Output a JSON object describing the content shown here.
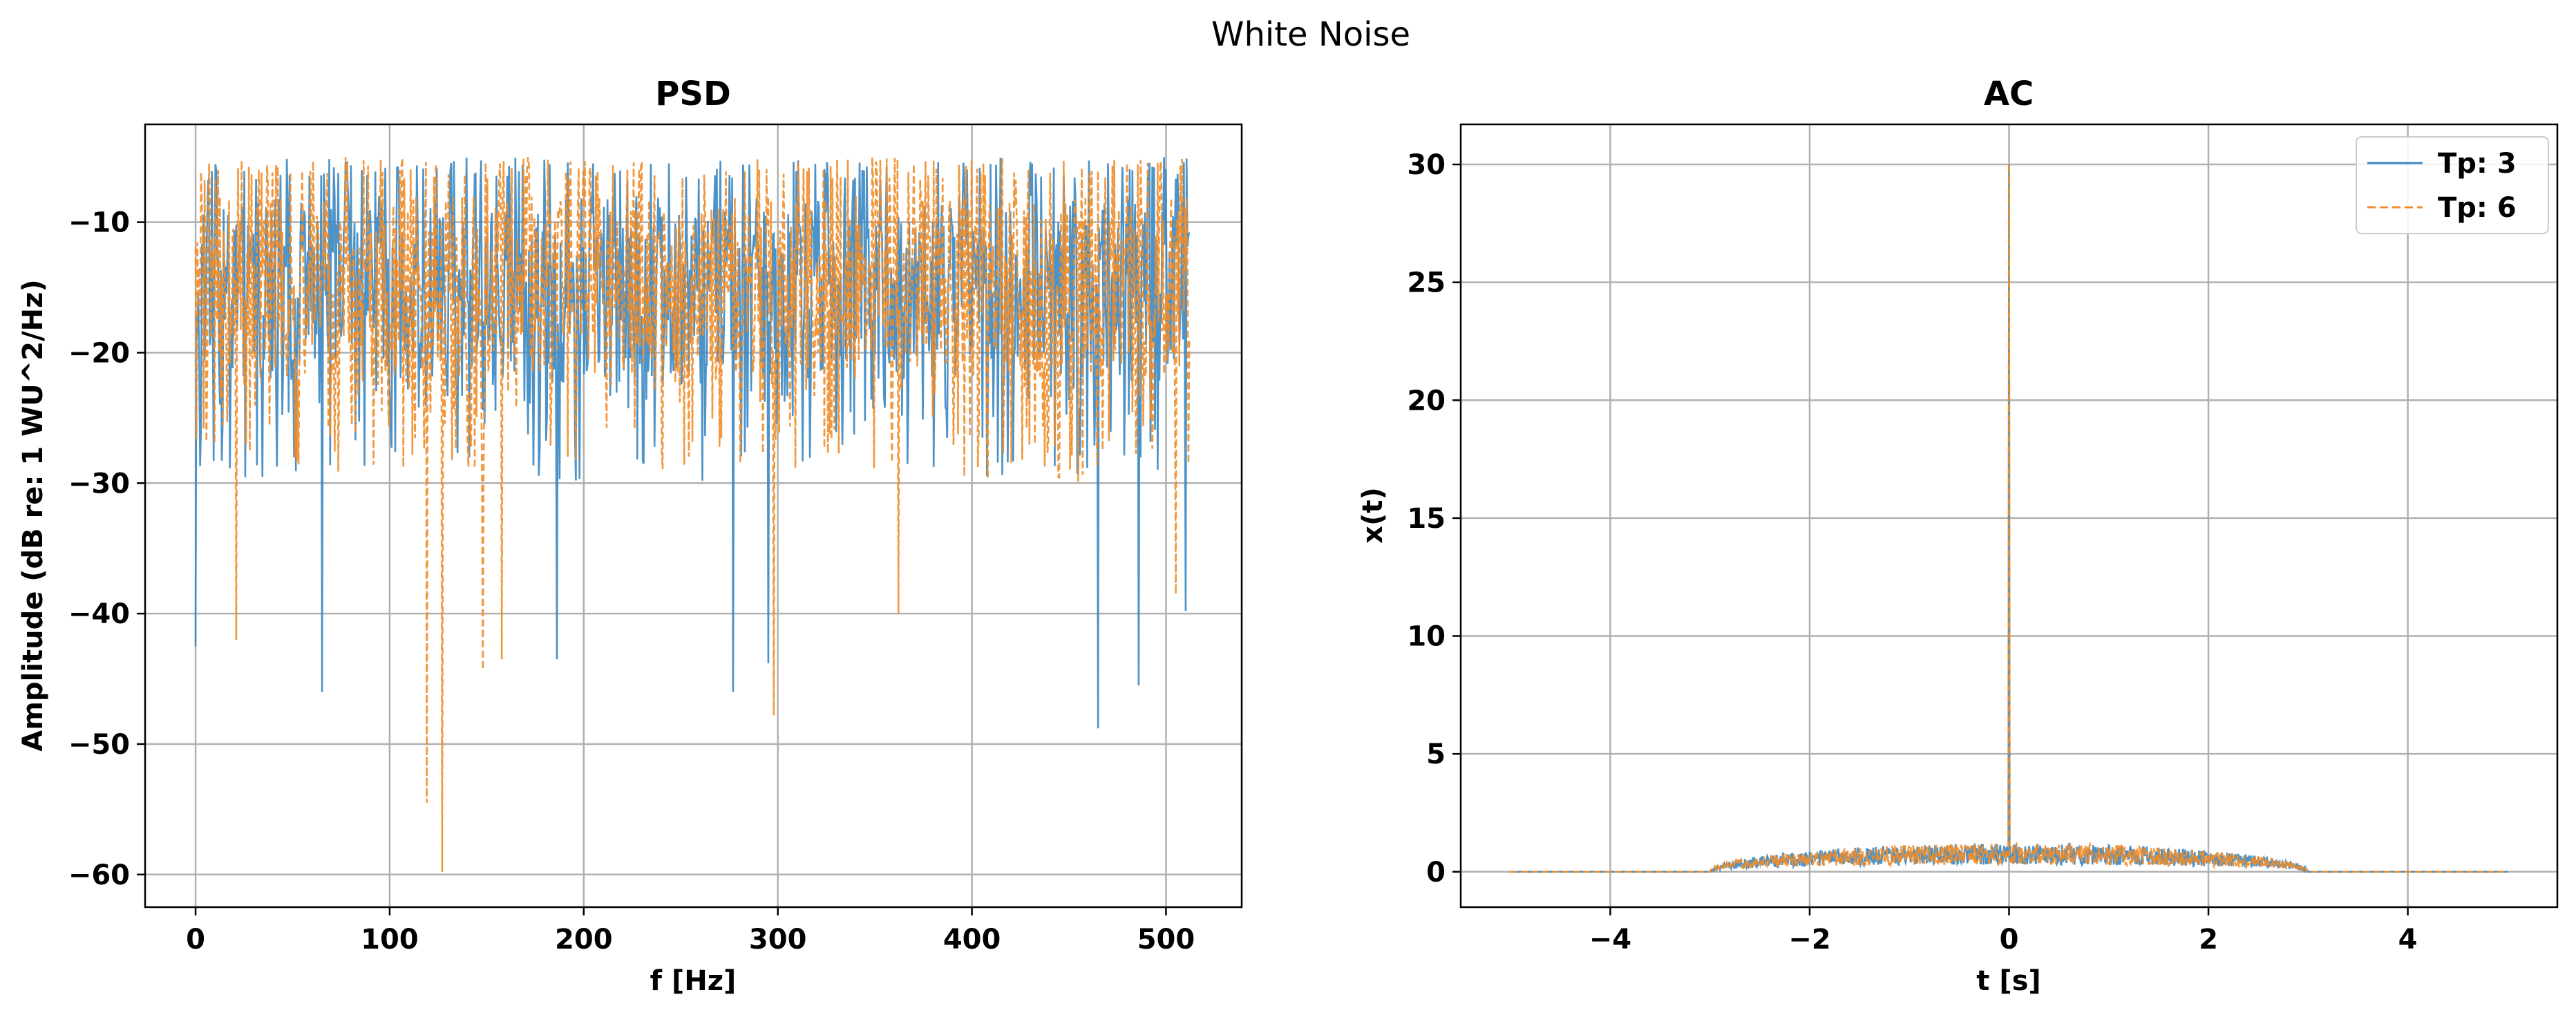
{
  "figure_title": "White Noise",
  "colors": {
    "series1": "#3a87c2",
    "series2": "#f08d2a",
    "grid": "#b0b0b0",
    "axis": "#000000"
  },
  "chart_data": [
    {
      "type": "line",
      "title": "PSD",
      "xlabel": "f [Hz]",
      "ylabel": "Amplitude (dB re: 1 WU^2/Hz)",
      "xlim": [
        -26,
        539
      ],
      "ylim": [
        -62.5,
        -2.5
      ],
      "xticks": [
        0,
        100,
        200,
        300,
        400,
        500
      ],
      "xtick_labels": [
        "0",
        "100",
        "200",
        "300",
        "400",
        "500"
      ],
      "yticks": [
        -10,
        -20,
        -30,
        -40,
        -50,
        -60
      ],
      "ytick_labels": [
        "−10",
        "−20",
        "−30",
        "−40",
        "−50",
        "−60"
      ],
      "grid": true,
      "series": [
        {
          "name": "Tp: 3",
          "style": "solid",
          "x_range": [
            0,
            512
          ],
          "typical_range": [
            -22,
            -8
          ],
          "max": -5,
          "min_dips": [
            [
              0,
              -42.5
            ],
            [
              65,
              -46
            ],
            [
              186,
              -43.5
            ],
            [
              277,
              -46
            ],
            [
              295,
              -43.8
            ],
            [
              465,
              -48.8
            ],
            [
              486,
              -45.5
            ],
            [
              510,
              -39.8
            ]
          ]
        },
        {
          "name": "Tp: 6",
          "style": "dashed",
          "x_range": [
            0,
            512
          ],
          "typical_range": [
            -22,
            -8
          ],
          "max": -5,
          "min_dips": [
            [
              21,
              -42
            ],
            [
              119,
              -54.5
            ],
            [
              127,
              -59.8
            ],
            [
              148,
              -44.3
            ],
            [
              158,
              -43.5
            ],
            [
              298,
              -47.8
            ],
            [
              362,
              -40
            ],
            [
              505,
              -38.5
            ]
          ]
        }
      ]
    },
    {
      "type": "line",
      "title": "AC",
      "xlabel": "t [s]",
      "ylabel": "x(t)",
      "xlim": [
        -5.5,
        5.5
      ],
      "ylim": [
        -1.5,
        31.7
      ],
      "xticks": [
        -4,
        -2,
        0,
        2,
        4
      ],
      "xtick_labels": [
        "−4",
        "−2",
        "0",
        "2",
        "4"
      ],
      "yticks": [
        0,
        5,
        10,
        15,
        20,
        25,
        30
      ],
      "ytick_labels": [
        "0",
        "5",
        "10",
        "15",
        "20",
        "25",
        "30"
      ],
      "grid": true,
      "legend": {
        "location": "upper right",
        "entries": [
          "Tp: 3",
          "Tp: 6"
        ]
      },
      "series": [
        {
          "name": "Tp: 3",
          "style": "solid",
          "x_range": [
            -5,
            5
          ],
          "peak": [
            0,
            30
          ],
          "noise_band": [
            -3,
            3
          ],
          "noise_max": 1.2
        },
        {
          "name": "Tp: 6",
          "style": "dashed",
          "x_range": [
            -5,
            5
          ],
          "peak": [
            0,
            30
          ],
          "noise_band": [
            -3,
            3
          ],
          "noise_max": 1.2
        }
      ]
    }
  ]
}
